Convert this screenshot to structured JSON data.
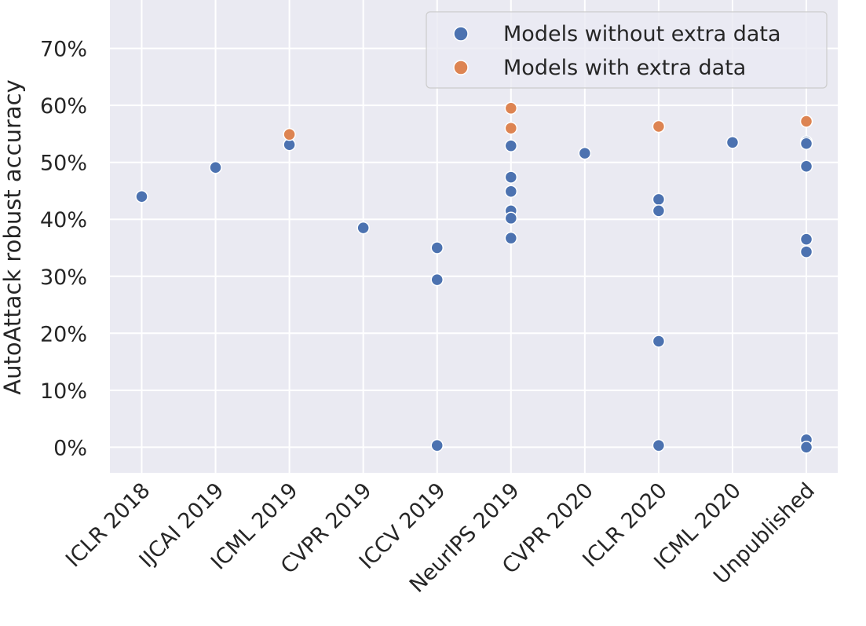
{
  "chart_data": {
    "type": "scatter",
    "title": "",
    "xlabel": "",
    "ylabel": "AutoAttack robust accuracy",
    "categories": [
      "ICLR 2018",
      "IJCAI 2019",
      "ICML 2019",
      "CVPR 2019",
      "ICCV 2019",
      "NeurIPS 2019",
      "CVPR 2020",
      "ICLR 2020",
      "ICML 2020",
      "Unpublished"
    ],
    "ylim": [
      -4.5,
      78.5
    ],
    "yticks": [
      0,
      10,
      20,
      30,
      40,
      50,
      60,
      70
    ],
    "ytick_labels": [
      "0%",
      "10%",
      "20%",
      "30%",
      "40%",
      "50%",
      "60%",
      "70%"
    ],
    "grid": true,
    "legend_placement": "top-right",
    "colors": {
      "background": "#eaeaf2",
      "grid": "#ffffff",
      "series_without": "#4c72b0",
      "series_with": "#dd8452"
    },
    "series": [
      {
        "name": "Models without extra data",
        "color": "#4c72b0",
        "points": [
          {
            "x": "ICLR 2018",
            "y": 44.0
          },
          {
            "x": "IJCAI 2019",
            "y": 49.1
          },
          {
            "x": "ICML 2019",
            "y": 53.1
          },
          {
            "x": "CVPR 2019",
            "y": 38.5
          },
          {
            "x": "ICCV 2019",
            "y": 35.0
          },
          {
            "x": "ICCV 2019",
            "y": 29.4
          },
          {
            "x": "ICCV 2019",
            "y": 0.3
          },
          {
            "x": "NeurIPS 2019",
            "y": 52.9
          },
          {
            "x": "NeurIPS 2019",
            "y": 47.4
          },
          {
            "x": "NeurIPS 2019",
            "y": 44.9
          },
          {
            "x": "NeurIPS 2019",
            "y": 41.5
          },
          {
            "x": "NeurIPS 2019",
            "y": 40.2
          },
          {
            "x": "NeurIPS 2019",
            "y": 36.7
          },
          {
            "x": "CVPR 2020",
            "y": 51.6
          },
          {
            "x": "ICLR 2020",
            "y": 43.5
          },
          {
            "x": "ICLR 2020",
            "y": 41.5
          },
          {
            "x": "ICLR 2020",
            "y": 18.6
          },
          {
            "x": "ICLR 2020",
            "y": 0.3
          },
          {
            "x": "ICML 2020",
            "y": 53.5
          },
          {
            "x": "Unpublished",
            "y": 53.6
          },
          {
            "x": "Unpublished",
            "y": 53.3
          },
          {
            "x": "Unpublished",
            "y": 49.3
          },
          {
            "x": "Unpublished",
            "y": 36.5
          },
          {
            "x": "Unpublished",
            "y": 34.3
          },
          {
            "x": "Unpublished",
            "y": 1.3
          },
          {
            "x": "Unpublished",
            "y": 0.0
          }
        ]
      },
      {
        "name": "Models with extra data",
        "color": "#dd8452",
        "points": [
          {
            "x": "ICML 2019",
            "y": 54.9
          },
          {
            "x": "NeurIPS 2019",
            "y": 59.5
          },
          {
            "x": "NeurIPS 2019",
            "y": 56.0
          },
          {
            "x": "ICLR 2020",
            "y": 56.3
          },
          {
            "x": "Unpublished",
            "y": 57.2
          }
        ]
      }
    ]
  }
}
